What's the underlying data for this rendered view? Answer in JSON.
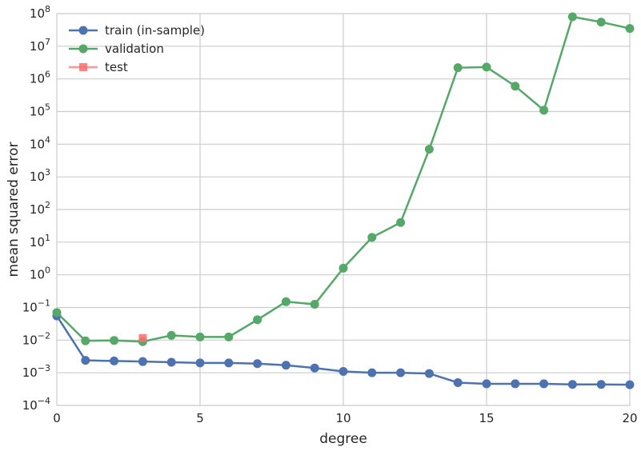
{
  "chart_data": {
    "type": "line",
    "xlabel": "degree",
    "ylabel": "mean squared error",
    "xlim": [
      0,
      20
    ],
    "ylim_exponent": [
      -4,
      8
    ],
    "yscale": "log",
    "x_ticks": [
      0,
      5,
      10,
      15,
      20
    ],
    "y_tick_exponents": [
      -4,
      -3,
      -2,
      -1,
      0,
      1,
      2,
      3,
      4,
      5,
      6,
      7,
      8
    ],
    "grid": true,
    "legend_position": "top-left",
    "series": [
      {
        "name": "train (in-sample)",
        "color": "#4c72b0",
        "marker": "circle",
        "x": [
          0,
          1,
          2,
          3,
          4,
          5,
          6,
          7,
          8,
          9,
          10,
          11,
          12,
          13,
          14,
          15,
          16,
          17,
          18,
          19,
          20
        ],
        "y": [
          0.055,
          0.0024,
          0.0023,
          0.0022,
          0.0021,
          0.002,
          0.002,
          0.0019,
          0.0017,
          0.0014,
          0.0011,
          0.001,
          0.001,
          0.00095,
          0.0005,
          0.00046,
          0.00046,
          0.00046,
          0.00044,
          0.00044,
          0.00043
        ]
      },
      {
        "name": "validation",
        "color": "#55a868",
        "marker": "circle",
        "x": [
          0,
          1,
          2,
          3,
          4,
          5,
          6,
          7,
          8,
          9,
          10,
          11,
          12,
          13,
          14,
          15,
          16,
          17,
          18,
          19,
          20
        ],
        "y": [
          0.07,
          0.0095,
          0.0098,
          0.009,
          0.014,
          0.0125,
          0.0125,
          0.042,
          0.15,
          0.125,
          1.6,
          14,
          40,
          7000,
          2200000,
          2300000,
          600000,
          110000,
          80000000,
          55000000,
          35000000
        ]
      },
      {
        "name": "test",
        "color": "#ff6b6b",
        "marker": "square",
        "x": [
          3
        ],
        "y": [
          0.0115
        ]
      }
    ]
  }
}
